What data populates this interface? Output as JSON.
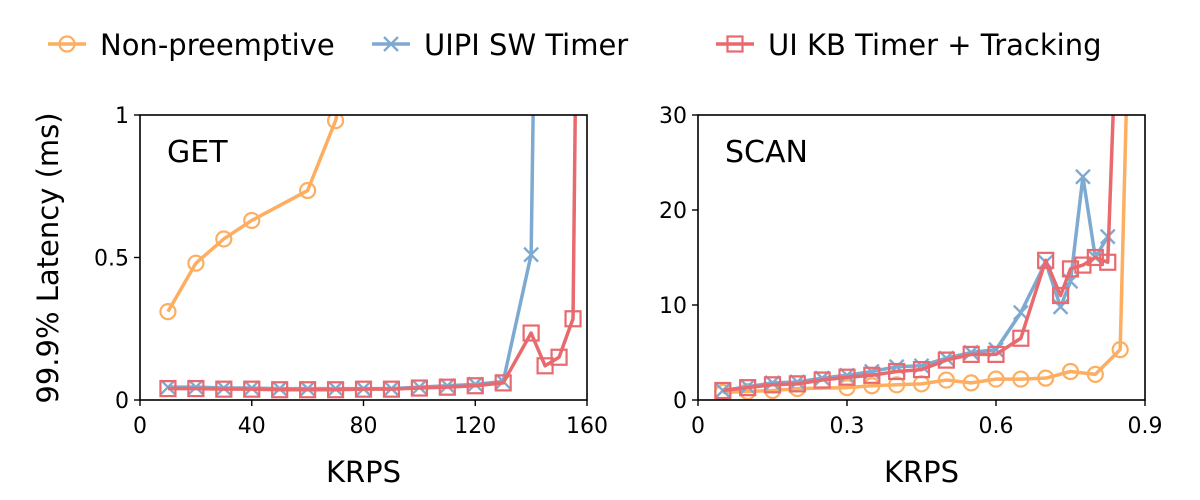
{
  "legend": [
    {
      "name": "Non-preemptive",
      "color": "#fdae61",
      "marker": "circle"
    },
    {
      "name": "UIPI SW Timer",
      "color": "#7eaad2",
      "marker": "x"
    },
    {
      "name": "UI KB Timer + Tracking",
      "color": "#e8696e",
      "marker": "square"
    }
  ],
  "ylabel": "99.9% Latency (ms)",
  "chart_data": [
    {
      "type": "line",
      "panel_label": "GET",
      "xlabel": "KRPS",
      "xlim": [
        0,
        160
      ],
      "ylim": [
        0,
        1
      ],
      "xticks": [
        0,
        40,
        80,
        120,
        160
      ],
      "xtick_labels": [
        "0",
        "40",
        "80",
        "120",
        "160"
      ],
      "yticks": [
        0,
        0.5,
        1
      ],
      "ytick_labels": [
        "0",
        "0.5",
        "1"
      ],
      "series": [
        {
          "name": "Non-preemptive",
          "x": [
            10,
            20,
            30,
            40,
            60,
            70,
            75
          ],
          "y": [
            0.31,
            0.48,
            0.565,
            0.63,
            0.735,
            0.98,
            1.2
          ],
          "marked": [
            1,
            1,
            1,
            1,
            1,
            1,
            0
          ]
        },
        {
          "name": "UIPI SW Timer",
          "x": [
            10,
            20,
            30,
            40,
            50,
            60,
            70,
            80,
            90,
            100,
            110,
            120,
            130,
            140,
            141
          ],
          "y": [
            0.045,
            0.045,
            0.042,
            0.042,
            0.04,
            0.04,
            0.04,
            0.04,
            0.04,
            0.045,
            0.05,
            0.055,
            0.065,
            0.51,
            1.2
          ],
          "marked": [
            1,
            1,
            1,
            1,
            1,
            1,
            1,
            1,
            1,
            1,
            1,
            1,
            1,
            1,
            0
          ]
        },
        {
          "name": "UI KB Timer + Tracking",
          "x": [
            10,
            20,
            30,
            40,
            50,
            60,
            70,
            80,
            90,
            100,
            110,
            120,
            130,
            140,
            145,
            150,
            155,
            156
          ],
          "y": [
            0.04,
            0.04,
            0.038,
            0.038,
            0.036,
            0.036,
            0.036,
            0.038,
            0.038,
            0.042,
            0.045,
            0.05,
            0.06,
            0.235,
            0.12,
            0.15,
            0.285,
            1.2
          ],
          "marked": [
            1,
            1,
            1,
            1,
            1,
            1,
            1,
            1,
            1,
            1,
            1,
            1,
            1,
            1,
            1,
            1,
            1,
            0
          ]
        }
      ]
    },
    {
      "type": "line",
      "panel_label": "SCAN",
      "xlabel": "KRPS",
      "xlim": [
        0,
        0.9
      ],
      "ylim": [
        0,
        30
      ],
      "xticks": [
        0,
        0.3,
        0.6,
        0.9
      ],
      "xtick_labels": [
        "0",
        "0.3",
        "0.6",
        "0.9"
      ],
      "yticks": [
        0,
        10,
        20,
        30
      ],
      "ytick_labels": [
        "0",
        "10",
        "20",
        "30"
      ],
      "series": [
        {
          "name": "Non-preemptive",
          "x": [
            0.05,
            0.1,
            0.15,
            0.2,
            0.3,
            0.35,
            0.4,
            0.45,
            0.5,
            0.55,
            0.6,
            0.65,
            0.7,
            0.75,
            0.8,
            0.85,
            0.865
          ],
          "y": [
            0.8,
            0.9,
            1.0,
            1.2,
            1.3,
            1.5,
            1.6,
            1.7,
            2.1,
            1.8,
            2.2,
            2.2,
            2.3,
            3.0,
            2.7,
            5.3,
            36
          ],
          "marked": [
            1,
            1,
            1,
            1,
            1,
            1,
            1,
            1,
            1,
            1,
            1,
            1,
            1,
            1,
            1,
            1,
            0
          ]
        },
        {
          "name": "UIPI SW Timer",
          "x": [
            0.05,
            0.1,
            0.15,
            0.2,
            0.25,
            0.3,
            0.35,
            0.4,
            0.45,
            0.5,
            0.55,
            0.6,
            0.65,
            0.7,
            0.73,
            0.75,
            0.775,
            0.8,
            0.825
          ],
          "y": [
            1.0,
            1.4,
            1.8,
            1.9,
            2.3,
            2.6,
            3.0,
            3.5,
            3.6,
            4.4,
            5.0,
            5.3,
            9.2,
            14.5,
            9.8,
            12.5,
            23.5,
            15.0,
            17.2
          ],
          "marked": [
            1,
            1,
            1,
            1,
            1,
            1,
            1,
            1,
            1,
            1,
            1,
            1,
            1,
            1,
            1,
            1,
            1,
            1,
            1
          ]
        },
        {
          "name": "UI KB Timer + Tracking",
          "x": [
            0.05,
            0.1,
            0.15,
            0.2,
            0.25,
            0.3,
            0.35,
            0.4,
            0.45,
            0.5,
            0.55,
            0.6,
            0.65,
            0.7,
            0.73,
            0.75,
            0.775,
            0.8,
            0.825,
            0.84
          ],
          "y": [
            1.0,
            1.3,
            1.6,
            1.7,
            2.1,
            2.4,
            2.6,
            3.0,
            3.2,
            4.2,
            4.8,
            4.8,
            6.5,
            14.7,
            11.0,
            13.8,
            14.2,
            15.0,
            14.5,
            36
          ],
          "marked": [
            1,
            1,
            1,
            1,
            1,
            1,
            1,
            1,
            1,
            1,
            1,
            1,
            1,
            1,
            1,
            1,
            1,
            1,
            1,
            0
          ]
        }
      ]
    }
  ]
}
